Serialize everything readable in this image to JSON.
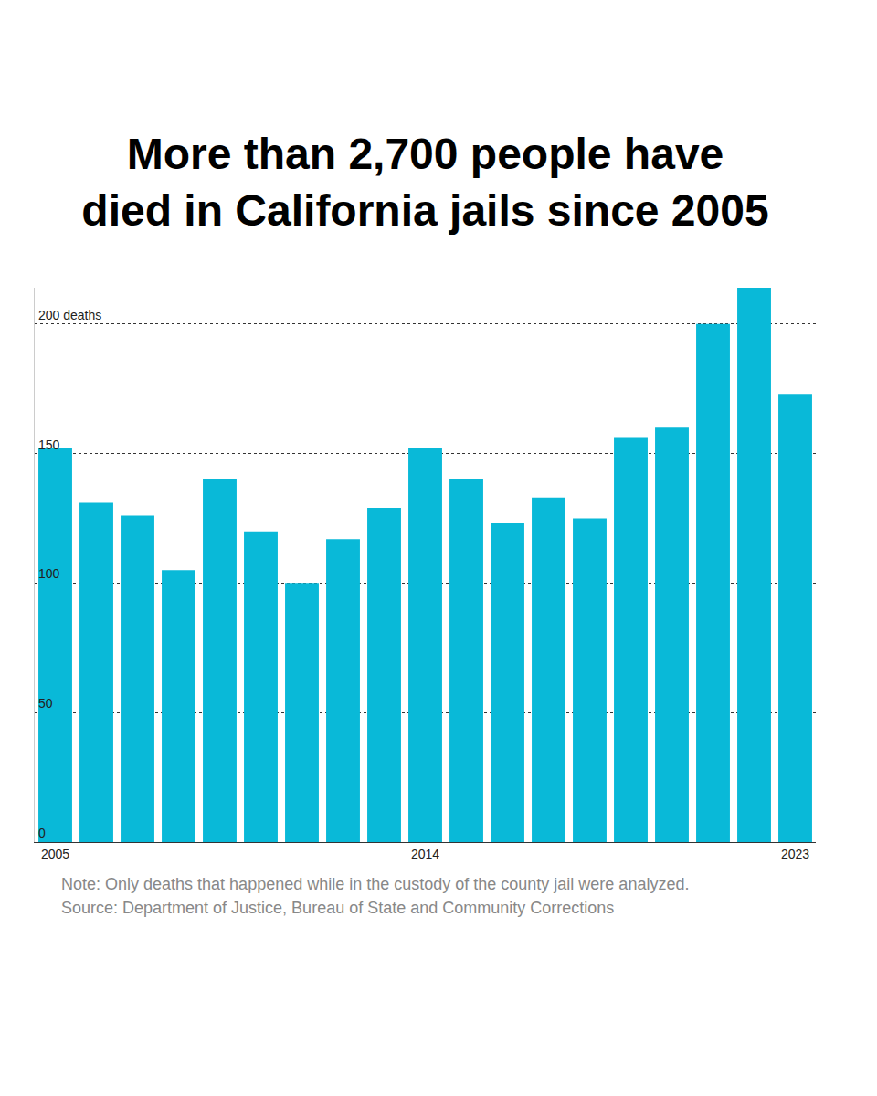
{
  "chart_data": {
    "type": "bar",
    "title": "More than 2,700 people have\ndied in California jails since 2005",
    "categories": [
      "2005",
      null,
      null,
      null,
      null,
      null,
      null,
      null,
      null,
      "2014",
      null,
      null,
      null,
      null,
      null,
      null,
      null,
      null,
      "2023"
    ],
    "values": [
      152,
      131,
      126,
      105,
      140,
      120,
      100,
      117,
      129,
      152,
      140,
      123,
      133,
      125,
      156,
      160,
      200,
      214,
      173
    ],
    "color": "#09b9d8",
    "ylim": [
      0,
      214
    ],
    "yticks": [
      0,
      50,
      100,
      150,
      {
        "value": 200,
        "label": "200 deaths"
      }
    ],
    "grid": true,
    "notes": [
      "Note: Only deaths that happened while in the custody of the county jail were analyzed.",
      "Source: Department of Justice, Bureau of State and Community Corrections"
    ]
  }
}
